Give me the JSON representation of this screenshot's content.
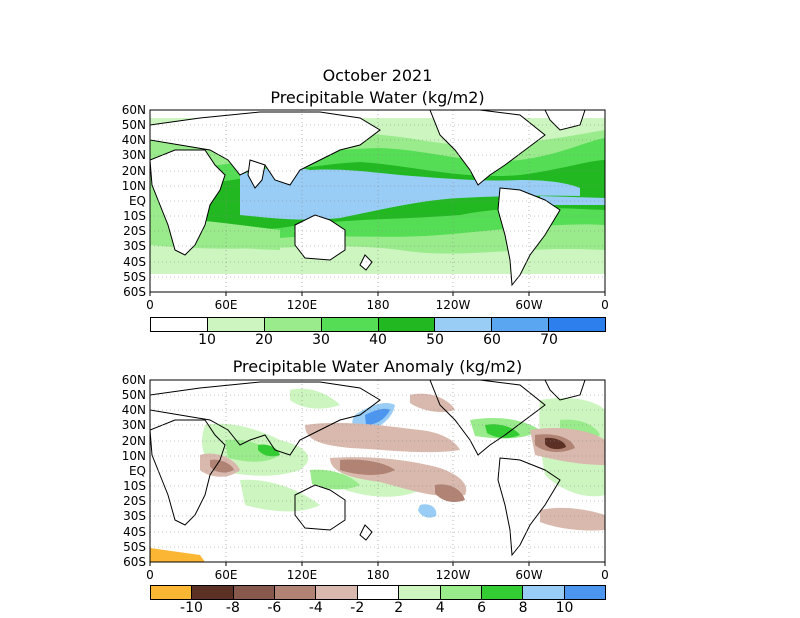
{
  "panel1": {
    "title_line1": "October 2021",
    "title_line2": "Precipitable Water (kg/m2)",
    "lat_labels": [
      "60N",
      "50N",
      "40N",
      "30N",
      "20N",
      "10N",
      "EQ",
      "10S",
      "20S",
      "30S",
      "40S",
      "50S",
      "60S"
    ],
    "lon_labels": [
      "0",
      "60E",
      "120E",
      "180",
      "120W",
      "60W",
      "0"
    ],
    "colorbar": {
      "colors": [
        "#ffffff",
        "#ccf5c0",
        "#99eb8c",
        "#55dd55",
        "#22b822",
        "#99cdf5",
        "#5aa6f0",
        "#2c7fec"
      ],
      "ticks": [
        "10",
        "20",
        "30",
        "40",
        "50",
        "60",
        "70"
      ]
    }
  },
  "panel2": {
    "title": "Precipitable Water Anomaly (kg/m2)",
    "lat_labels": [
      "60N",
      "50N",
      "40N",
      "30N",
      "20N",
      "10N",
      "EQ",
      "10S",
      "20S",
      "30S",
      "40S",
      "50S",
      "60S"
    ],
    "lon_labels": [
      "0",
      "60E",
      "120E",
      "180",
      "120W",
      "60W",
      "0"
    ],
    "colorbar": {
      "colors": [
        "#fbb634",
        "#5b3025",
        "#87594c",
        "#b08374",
        "#d9b9ad",
        "#ffffff",
        "#ccf5c0",
        "#99eb8c",
        "#33cc33",
        "#99cdf5",
        "#4d96f0"
      ],
      "ticks": [
        "-10",
        "-8",
        "-6",
        "-4",
        "-2",
        "2",
        "4",
        "6",
        "8",
        "10"
      ]
    }
  }
}
